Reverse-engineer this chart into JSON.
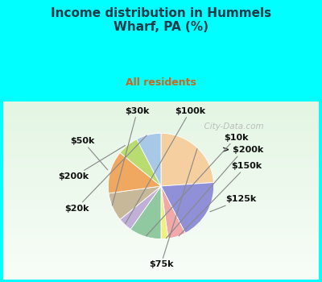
{
  "title": "Income distribution in Hummels\nWharf, PA (%)",
  "subtitle": "All residents",
  "background_top": "#00FFFF",
  "title_color": "#1a3a4a",
  "subtitle_color": "#cc6622",
  "labels": [
    "$75k",
    "$125k",
    "$150k",
    "> $200k",
    "$10k",
    "$100k",
    "$30k",
    "$50k",
    "$200k",
    "$20k"
  ],
  "sizes": [
    22,
    17,
    5,
    2,
    9,
    4,
    8,
    12,
    6,
    7
  ],
  "colors": [
    "#F5CFA0",
    "#9090D8",
    "#F0A8A8",
    "#F0F080",
    "#90C8A0",
    "#C0B0D8",
    "#C8B89A",
    "#F0A860",
    "#B8DC70",
    "#A8C8E8"
  ],
  "startangle": 90,
  "label_fontsize": 8,
  "watermark": "  City-Data.com"
}
